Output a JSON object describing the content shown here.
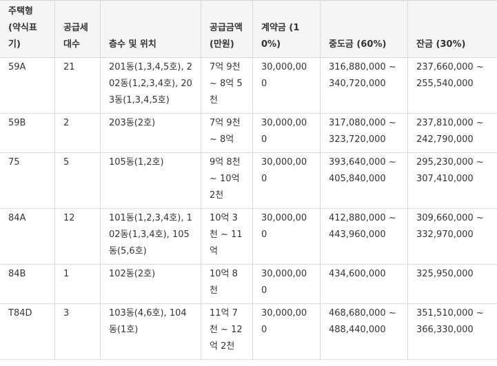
{
  "chart_data": {
    "type": "table",
    "columns": [
      "주택형 (약식표기)",
      "공급세대수",
      "층수 및 위치",
      "공급금액 (만원)",
      "계약금 (10%)",
      "중도금 (60%)",
      "잔금 (30%)"
    ],
    "rows": [
      [
        "59A",
        "21",
        "201동(1,3,4,5호), 202동(1,2,3,4호), 203동(1,3,4,5호)",
        "7억 9천 ~ 8억 5천",
        "30,000,000",
        "316,880,000 ~ 340,720,000",
        "237,660,000 ~ 255,540,000"
      ],
      [
        "59B",
        "2",
        "203동(2호)",
        "7억 9천 ~ 8억",
        "30,000,000",
        "317,080,000 ~ 323,720,000",
        "237,810,000 ~ 242,790,000"
      ],
      [
        "75",
        "5",
        "105동(1,2호)",
        "9억 8천 ~ 10억 2천",
        "30,000,000",
        "393,640,000 ~ 405,840,000",
        "295,230,000 ~ 307,410,000"
      ],
      [
        "84A",
        "12",
        "101동(1,2,3,4호), 102동(1,3,4호), 105동(5,6호)",
        "10억 3천 ~ 11억",
        "30,000,000",
        "412,880,000 ~ 443,960,000",
        "309,660,000 ~ 332,970,000"
      ],
      [
        "84B",
        "1",
        "102동(2호)",
        "10억 8천",
        "30,000,000",
        "434,600,000",
        "325,950,000"
      ],
      [
        "T84D",
        "3",
        "103동(4,6호), 104동(1호)",
        "11억 7천 ~ 12억 2천",
        "30,000,000",
        "468,680,000 ~ 488,440,000",
        "351,510,000 ~ 366,330,000"
      ]
    ]
  }
}
